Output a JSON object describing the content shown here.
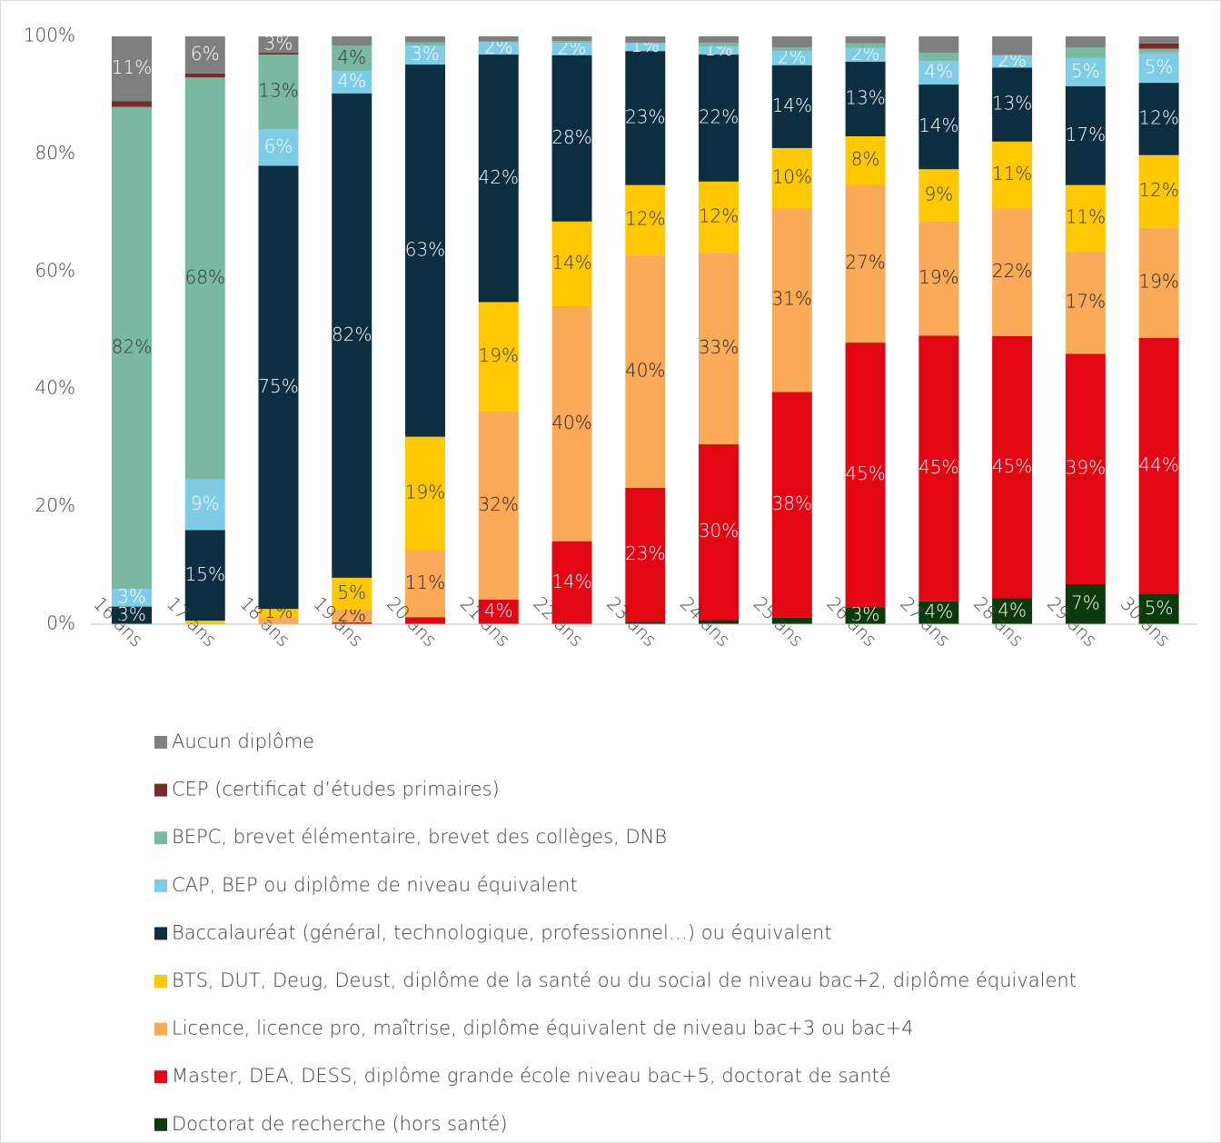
{
  "chart_data": {
    "type": "stacked_bar",
    "categories": [
      "16 ans",
      "17 ans",
      "18 ans",
      "19 ans",
      "20 ans",
      "21 ans",
      "22 ans",
      "23 ans",
      "24 ans",
      "25 ans",
      "26 ans",
      "27 ans",
      "28 ans",
      "29 ans",
      "30 ans"
    ],
    "ylim": [
      0,
      100
    ],
    "yticks": [
      {
        "value": 0,
        "label": "0%"
      },
      {
        "value": 20,
        "label": "20%"
      },
      {
        "value": 40,
        "label": "40%"
      },
      {
        "value": 60,
        "label": "60%"
      },
      {
        "value": 80,
        "label": "80%"
      },
      {
        "value": 100,
        "label": "100%"
      }
    ],
    "grid": false,
    "legend": "bottom",
    "series": [
      {
        "name": "Aucun diplôme",
        "color": "#7f7f7f",
        "label_color": "#ffffff",
        "values": [
          11,
          6.3,
          2.8,
          1.6,
          1,
          0.9,
          0.8,
          1.1,
          1.1,
          1.9,
          1.2,
          2.8,
          3.2,
          1.9,
          1.2
        ],
        "value_labels": [
          "11%",
          "6%",
          "3%",
          null,
          null,
          null,
          null,
          null,
          null,
          null,
          null,
          null,
          null,
          null,
          null
        ]
      },
      {
        "name": "CEP (certificat d’études primaires)",
        "color": "#7b2a2a",
        "label_color": "#ffffff",
        "values": [
          1,
          0.7,
          0.3,
          0,
          0,
          0,
          0,
          0,
          0,
          0,
          0,
          0,
          0,
          0,
          0.9
        ],
        "value_labels": [
          null,
          null,
          null,
          null,
          null,
          null,
          null,
          null,
          null,
          null,
          null,
          null,
          null,
          null,
          null
        ]
      },
      {
        "name": "BEPC, brevet élémentaire, brevet des collèges, DNB",
        "color": "#79b9a3",
        "label_color": "#333333",
        "values": [
          82,
          68.4,
          12.7,
          4.3,
          0.6,
          0,
          0.3,
          0,
          0.6,
          0.6,
          0.8,
          1.4,
          0,
          1.8,
          0.8
        ],
        "value_labels": [
          "82%",
          "68%",
          "13%",
          "4%",
          null,
          null,
          null,
          null,
          null,
          null,
          null,
          null,
          null,
          null,
          null
        ]
      },
      {
        "name": "CAP, BEP ou diplôme de niveau équivalent",
        "color": "#7fcce6",
        "label_color": "#ffffff",
        "values": [
          3,
          8.6,
          6.2,
          3.8,
          3.2,
          2.2,
          2.1,
          1.4,
          1.4,
          2.4,
          2.3,
          4,
          2.1,
          4.8,
          5
        ],
        "value_labels": [
          "3%",
          "9%",
          "6%",
          "4%",
          "3%",
          "2%",
          "2%",
          "1%",
          "1%",
          "2%",
          "2%",
          "4%",
          "2%",
          "5%",
          "5%"
        ]
      },
      {
        "name": "Baccalauréat (général, technologique, professionnel…) ou équivalent",
        "color": "#0b2e40",
        "label_color": "#ffffff",
        "values": [
          3,
          15.4,
          75.4,
          82.4,
          63.3,
          42.1,
          28.3,
          22.8,
          21.6,
          14.1,
          12.7,
          14.4,
          12.6,
          16.8,
          12.3
        ],
        "value_labels": [
          "3%",
          "15%",
          "75%",
          "82%",
          "63%",
          "42%",
          "28%",
          "23%",
          "22%",
          "14%",
          "13%",
          "14%",
          "13%",
          "17%",
          "12%"
        ]
      },
      {
        "name": "BTS, DUT, Deug, Deust, diplôme de la santé ou du social de niveau bac+2, diplôme équivalent",
        "color": "#ffc800",
        "label_color": "#333333",
        "values": [
          0,
          0.6,
          1.4,
          5.4,
          19.3,
          18.6,
          14.4,
          11.9,
          12.1,
          10.2,
          8.2,
          8.9,
          11.3,
          11.3,
          12.3
        ],
        "value_labels": [
          null,
          null,
          "1%",
          "5%",
          "19%",
          "19%",
          "14%",
          "12%",
          "12%",
          "10%",
          "8%",
          "9%",
          "11%",
          "11%",
          "12%"
        ]
      },
      {
        "name": "Licence, licence pro, maîtrise, diplôme équivalent de niveau bac+3 ou bac+4",
        "color": "#fbab57",
        "label_color": "#222222",
        "values": [
          0,
          0,
          1.2,
          2.2,
          11.4,
          32,
          40,
          39.6,
          32.6,
          31.3,
          26.9,
          19.4,
          21.8,
          17.4,
          18.8
        ],
        "value_labels": [
          null,
          null,
          null,
          "2%",
          "11%",
          "32%",
          "40%",
          "40%",
          "33%",
          "31%",
          "27%",
          "19%",
          "22%",
          "17%",
          "19%"
        ]
      },
      {
        "name": "Master, DEA, DESS, diplôme grande école niveau bac+5, doctorat de santé",
        "color": "#e30613",
        "label_color": "#ffffff",
        "values": [
          0,
          0,
          0,
          0.3,
          1.2,
          4.2,
          14.1,
          22.8,
          29.9,
          38.4,
          45,
          45.2,
          44.6,
          39.2,
          43.6
        ],
        "value_labels": [
          null,
          null,
          null,
          null,
          null,
          "4%",
          "14%",
          "23%",
          "30%",
          "38%",
          "45%",
          "45%",
          "45%",
          "39%",
          "44%"
        ]
      },
      {
        "name": "Doctorat de recherche (hors santé)",
        "color": "#0b3b0b",
        "label_color": "#ffffff",
        "values": [
          0,
          0,
          0,
          0,
          0,
          0,
          0,
          0.4,
          0.7,
          1.1,
          2.9,
          3.9,
          4.4,
          6.8,
          5.1
        ],
        "value_labels": [
          null,
          null,
          null,
          null,
          null,
          null,
          null,
          null,
          null,
          null,
          "3%",
          "4%",
          "4%",
          "7%",
          "5%"
        ]
      }
    ]
  }
}
